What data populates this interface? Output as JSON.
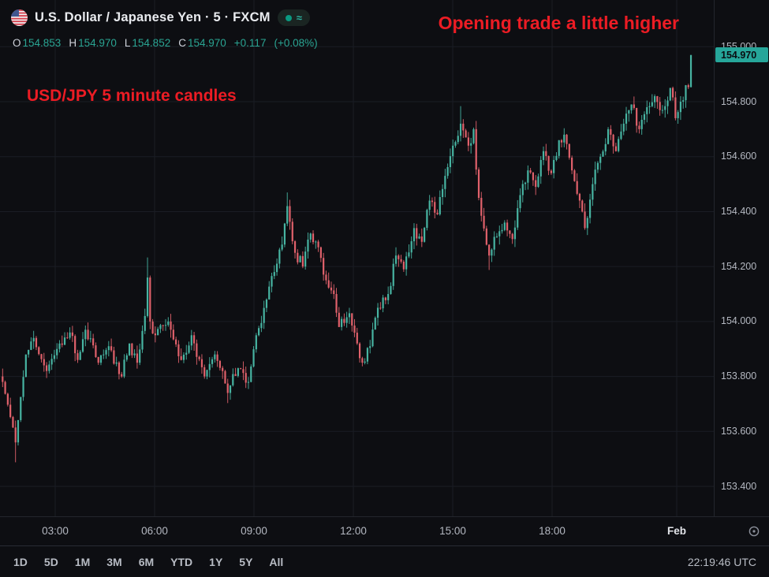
{
  "header": {
    "title": "U.S. Dollar / Japanese Yen · 5 · FXCM",
    "status_symbol": "≈",
    "ohlc": {
      "o_label": "O",
      "o": "154.853",
      "h_label": "H",
      "h": "154.970",
      "l_label": "L",
      "l": "154.852",
      "c_label": "C",
      "c": "154.970",
      "change": "+0.117",
      "change_pct": "(+0.08%)"
    }
  },
  "annotations": {
    "top_right": "Opening trade a little higher",
    "mid_left": "USD/JPY 5 minute candles",
    "color": "#ec1c24"
  },
  "price_axis": {
    "ticks": [
      "155.000",
      "154.800",
      "154.600",
      "154.400",
      "154.200",
      "154.000",
      "153.800",
      "153.600",
      "153.400"
    ],
    "last_price_label": "154.970",
    "last_price": 154.97
  },
  "time_axis": {
    "labels": [
      {
        "text": "03:00",
        "major": false
      },
      {
        "text": "06:00",
        "major": false
      },
      {
        "text": "09:00",
        "major": false
      },
      {
        "text": "12:00",
        "major": false
      },
      {
        "text": "15:00",
        "major": false
      },
      {
        "text": "18:00",
        "major": false
      },
      {
        "text": "Feb",
        "major": true
      }
    ]
  },
  "toolbar": {
    "ranges": [
      "1D",
      "5D",
      "1M",
      "3M",
      "6M",
      "YTD",
      "1Y",
      "5Y",
      "All"
    ],
    "clock": "22:19:46 UTC"
  },
  "chart_data": {
    "type": "candlestick",
    "title": "U.S. Dollar / Japanese Yen · 5 · FXCM",
    "symbol": "USD/JPY",
    "interval_minutes": 5,
    "exchange": "FXCM",
    "ylim": [
      153.29,
      155.17
    ],
    "y_ticks": [
      155.0,
      154.8,
      154.6,
      154.4,
      154.2,
      154.0,
      153.8,
      153.6,
      153.4
    ],
    "x_tick_labels": [
      "03:00",
      "06:00",
      "09:00",
      "12:00",
      "15:00",
      "18:00",
      "Feb"
    ],
    "grid": true,
    "candle_count": 267,
    "last_candle": {
      "o": 154.853,
      "h": 154.97,
      "l": 154.852,
      "c": 154.97
    },
    "session": {
      "open_read": 154.853,
      "high_read": 154.97,
      "low_read": 154.852,
      "close_read": 154.97,
      "change": 0.117,
      "change_pct": 0.08
    },
    "pivots": [
      [
        0,
        153.78
      ],
      [
        5,
        153.56
      ],
      [
        9,
        153.88
      ],
      [
        12,
        153.94
      ],
      [
        17,
        153.82
      ],
      [
        21,
        153.9
      ],
      [
        26,
        153.96
      ],
      [
        29,
        153.86
      ],
      [
        32,
        153.97
      ],
      [
        37,
        153.85
      ],
      [
        41,
        153.91
      ],
      [
        46,
        153.8
      ],
      [
        49,
        153.92
      ],
      [
        52,
        153.85
      ],
      [
        55,
        154.02
      ],
      [
        56,
        154.16
      ],
      [
        57,
        154.0
      ],
      [
        59,
        153.95
      ],
      [
        64,
        154.0
      ],
      [
        69,
        153.86
      ],
      [
        73,
        153.95
      ],
      [
        78,
        153.8
      ],
      [
        82,
        153.88
      ],
      [
        87,
        153.74
      ],
      [
        91,
        153.83
      ],
      [
        95,
        153.78
      ],
      [
        98,
        153.95
      ],
      [
        102,
        154.08
      ],
      [
        105,
        154.18
      ],
      [
        108,
        154.28
      ],
      [
        110,
        154.42
      ],
      [
        113,
        154.25
      ],
      [
        116,
        154.2
      ],
      [
        119,
        154.32
      ],
      [
        122,
        154.27
      ],
      [
        125,
        154.15
      ],
      [
        128,
        154.1
      ],
      [
        130,
        153.98
      ],
      [
        134,
        154.03
      ],
      [
        137,
        153.92
      ],
      [
        139,
        153.85
      ],
      [
        142,
        153.91
      ],
      [
        145,
        154.05
      ],
      [
        149,
        154.1
      ],
      [
        152,
        154.24
      ],
      [
        155,
        154.19
      ],
      [
        159,
        154.34
      ],
      [
        162,
        154.29
      ],
      [
        165,
        154.44
      ],
      [
        168,
        154.39
      ],
      [
        171,
        154.53
      ],
      [
        174,
        154.64
      ],
      [
        177,
        154.72
      ],
      [
        180,
        154.64
      ],
      [
        182,
        154.7
      ],
      [
        184,
        154.45
      ],
      [
        188,
        154.24
      ],
      [
        191,
        154.31
      ],
      [
        194,
        154.36
      ],
      [
        197,
        154.3
      ],
      [
        200,
        154.46
      ],
      [
        203,
        154.55
      ],
      [
        206,
        154.49
      ],
      [
        209,
        154.62
      ],
      [
        212,
        154.54
      ],
      [
        215,
        154.66
      ],
      [
        217,
        154.68
      ],
      [
        220,
        154.55
      ],
      [
        223,
        154.44
      ],
      [
        225,
        154.34
      ],
      [
        228,
        154.5
      ],
      [
        231,
        154.6
      ],
      [
        234,
        154.7
      ],
      [
        237,
        154.62
      ],
      [
        240,
        154.72
      ],
      [
        243,
        154.79
      ],
      [
        246,
        154.7
      ],
      [
        249,
        154.78
      ],
      [
        252,
        154.82
      ],
      [
        255,
        154.77
      ],
      [
        258,
        154.85
      ],
      [
        260,
        154.74
      ],
      [
        262,
        154.8
      ],
      [
        264,
        154.86
      ],
      [
        265,
        154.853
      ],
      [
        266,
        154.97
      ]
    ],
    "spikes": [
      [
        5,
        0,
        0.05
      ],
      [
        56,
        0.05,
        0
      ],
      [
        87,
        0,
        0.03
      ],
      [
        110,
        0.035,
        0
      ],
      [
        177,
        0.05,
        0
      ],
      [
        188,
        0,
        0.035
      ]
    ],
    "up_color": "#47b4a2",
    "down_color": "#e0616b",
    "grid_color": "#1a1d24",
    "noise": 0.05,
    "wick": 0.03,
    "seed": 11
  }
}
